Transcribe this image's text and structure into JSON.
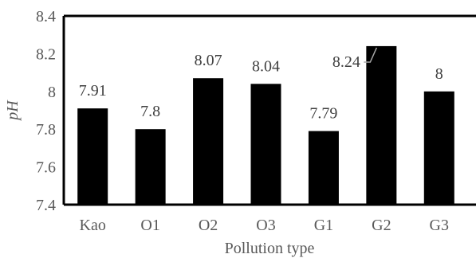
{
  "chart_data": {
    "type": "bar",
    "title": "",
    "xlabel": "Pollution type",
    "ylabel": "pH",
    "categories": [
      "Kao",
      "O1",
      "O2",
      "O3",
      "G1",
      "G2",
      "G3"
    ],
    "values": [
      7.91,
      7.8,
      8.07,
      8.04,
      7.79,
      8.24,
      8.0
    ],
    "data_labels": [
      "7.91",
      "7.8",
      "8.07",
      "8.04",
      "7.79",
      "8.24",
      "8"
    ],
    "ylim": [
      7.4,
      8.4
    ],
    "yticks": [
      7.4,
      7.6,
      7.8,
      8.0,
      8.2,
      8.4
    ],
    "ytick_labels": [
      "7.4",
      "7.6",
      "7.8",
      "8",
      "8.2",
      "8.4"
    ],
    "grid": false,
    "legend": "none",
    "colors": {
      "bar": "#000000",
      "axis": "#000000",
      "tick_text": "#595959",
      "label_text": "#404040",
      "leader_line": "#a6a6a6"
    }
  }
}
